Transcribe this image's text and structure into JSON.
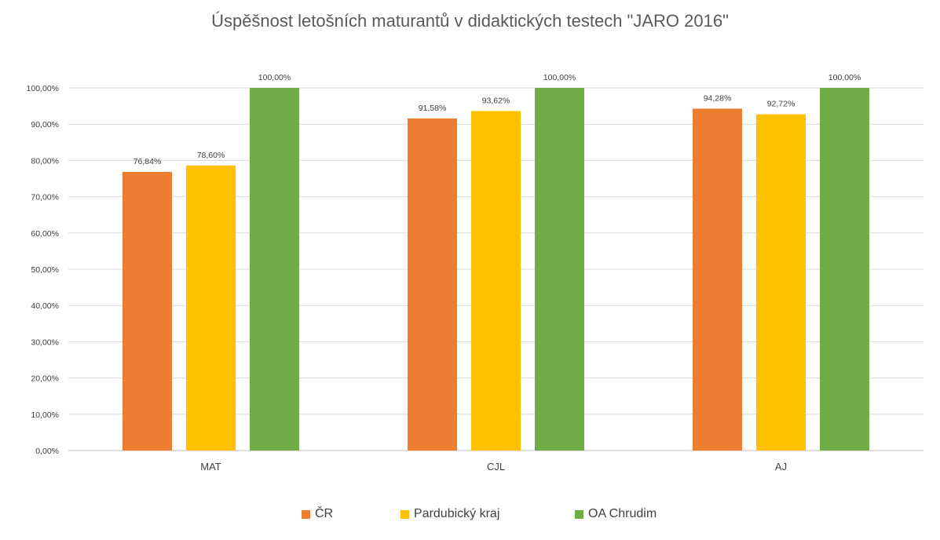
{
  "chart_data": {
    "type": "bar",
    "title": "Úspěšnost letošních maturantů v didaktických testech \"JARO 2016\"",
    "categories": [
      "MAT",
      "CJL",
      "AJ"
    ],
    "series": [
      {
        "name": "ČR",
        "color": "#ED7D31",
        "values": [
          76.84,
          91.58,
          94.28
        ],
        "labels": [
          "76,84%",
          "91,58%",
          "94,28%"
        ]
      },
      {
        "name": "Pardubický kraj",
        "color": "#FFC000",
        "values": [
          78.6,
          93.62,
          92.72
        ],
        "labels": [
          "78,60%",
          "93,62%",
          "92,72%"
        ]
      },
      {
        "name": "OA Chrudim",
        "color": "#70AD47",
        "values": [
          100.0,
          100.0,
          100.0
        ],
        "labels": [
          "100,00%",
          "100,00%",
          "100,00%"
        ]
      }
    ],
    "ylim": [
      0,
      100
    ],
    "yticks": [
      0,
      10,
      20,
      30,
      40,
      50,
      60,
      70,
      80,
      90,
      100
    ],
    "ytick_labels": [
      "0,00%",
      "10,00%",
      "20,00%",
      "30,00%",
      "40,00%",
      "50,00%",
      "60,00%",
      "70,00%",
      "80,00%",
      "90,00%",
      "100,00%"
    ],
    "grid": true,
    "legend_position": "bottom"
  }
}
